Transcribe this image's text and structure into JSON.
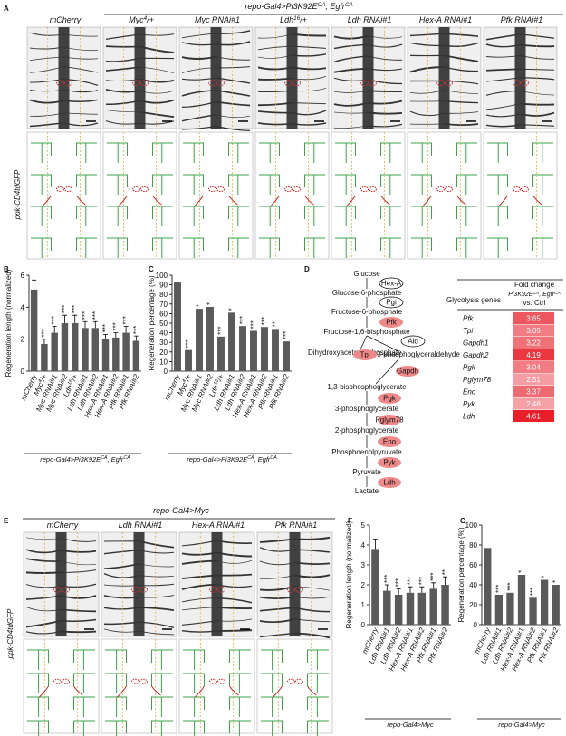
{
  "panel_labels": [
    "A",
    "B",
    "C",
    "D",
    "E",
    "F",
    "G"
  ],
  "panel_a": {
    "genotype": [
      "repo-Gal4>Pi3K92E",
      "CA",
      ", Egfr",
      "CA"
    ],
    "row_label": "ppk-CD4tdGFP",
    "columns": [
      [
        "mCherry"
      ],
      [
        "Myc",
        "4",
        "/+"
      ],
      [
        "Myc RNAi#1"
      ],
      [
        "Ldh",
        "16",
        "/+"
      ],
      [
        "Ldh RNAi#1"
      ],
      [
        "Hex-A RNAi#1"
      ],
      [
        "Pfk RNAi#1"
      ]
    ]
  },
  "panel_e": {
    "genotype": [
      "repo-Gal4>Myc"
    ],
    "row_label": "ppk-CD4tdGFP",
    "columns": [
      [
        "mCherry"
      ],
      [
        "Ldh RNAi#1"
      ],
      [
        "Hex-A RNAi#1"
      ],
      [
        "Pfk RNAi#1"
      ]
    ]
  },
  "panel_d": {
    "pathway": [
      {
        "label": "Glucose",
        "kind": "metabolite"
      },
      {
        "label": "Hex-A",
        "kind": "enzyme"
      },
      {
        "label": "Glucose-6-phosphate",
        "kind": "metabolite"
      },
      {
        "label": "Pgi",
        "kind": "enzyme"
      },
      {
        "label": "Fructose-6-phosphate",
        "kind": "metabolite"
      },
      {
        "label": "Pfk",
        "kind": "upregulated"
      },
      {
        "label": "Fructose-1,6-bisphosphate",
        "kind": "metabolite"
      },
      {
        "label": "Ald",
        "kind": "enzyme"
      },
      {
        "label": "Dihydroxyacetone phosphate",
        "kind": "metabolite"
      },
      {
        "label": "Tpi",
        "kind": "upregulated"
      },
      {
        "label": "3-phosphoglyceraldehyde",
        "kind": "metabolite"
      },
      {
        "label": "Gapdh",
        "kind": "upregulated"
      },
      {
        "label": "1,3-bisphosphoglycerate",
        "kind": "metabolite"
      },
      {
        "label": "Pgk",
        "kind": "upregulated"
      },
      {
        "label": "3-phosphoglycerate",
        "kind": "metabolite"
      },
      {
        "label": "Pglym78",
        "kind": "upregulated"
      },
      {
        "label": "2-phosphoglycerate",
        "kind": "metabolite"
      },
      {
        "label": "Eno",
        "kind": "upregulated"
      },
      {
        "label": "Phosphoenolpyruvate",
        "kind": "metabolite"
      },
      {
        "label": "Pyk",
        "kind": "upregulated"
      },
      {
        "label": "Pyruvate",
        "kind": "metabolite"
      },
      {
        "label": "Ldh",
        "kind": "upregulated"
      },
      {
        "label": "Lactate",
        "kind": "metabolite"
      }
    ],
    "table": {
      "gene_header": "Glycolysis genes",
      "fold_header": "Fold change",
      "comparison": [
        "Pi3K92E",
        "CA",
        ", Egfr",
        "CA"
      ],
      "ctrl": "vs. Ctrl",
      "rows": [
        {
          "gene": "Pfk",
          "fold": 3.65
        },
        {
          "gene": "Tpi",
          "fold": 3.05
        },
        {
          "gene": "Gapdh1",
          "fold": 3.22
        },
        {
          "gene": "Gapdh2",
          "fold": 4.19
        },
        {
          "gene": "Pgk",
          "fold": 3.04
        },
        {
          "gene": "Pglym78",
          "fold": 2.51
        },
        {
          "gene": "Eno",
          "fold": 3.37
        },
        {
          "gene": "Pyk",
          "fold": 2.46
        },
        {
          "gene": "Ldh",
          "fold": 4.61
        }
      ]
    }
  },
  "chart_data": [
    {
      "type": "bar",
      "y_label": "Regeneration length (normalized)",
      "color": "#5a5a5a",
      "categories": [
        [
          "mCherry"
        ],
        [
          "Myc",
          "4",
          "/+"
        ],
        [
          "Myc RNAi#1"
        ],
        [
          "Myc RNAi#2"
        ],
        [
          "Ldh",
          "16",
          "/+"
        ],
        [
          "Ldh RNAi#1"
        ],
        [
          "Ldh RNAi#2"
        ],
        [
          "Hex-A RNAi#1"
        ],
        [
          "Hex-A RNAi#2"
        ],
        [
          "Pfk RNAi#1"
        ],
        [
          "Pfk RNAi#2"
        ]
      ],
      "values": [
        5.1,
        1.7,
        2.4,
        3.0,
        3.0,
        2.7,
        2.7,
        2.0,
        2.1,
        2.4,
        1.9
      ],
      "errors": [
        0.6,
        0.3,
        0.4,
        0.5,
        0.5,
        0.4,
        0.4,
        0.3,
        0.3,
        0.4,
        0.3
      ],
      "significance": [
        null,
        "***",
        "***",
        "***",
        "***",
        "***",
        "***",
        "***",
        "***",
        "***",
        "***"
      ],
      "ylim": [
        0,
        6
      ],
      "yticks": [
        0,
        2,
        4,
        6
      ],
      "x_label": [
        "repo-Gal4>Pi3K92E",
        "CA",
        ", Egfr",
        "CA"
      ]
    },
    {
      "type": "bar",
      "y_label": "Regeneration percentage (%)",
      "color": "#5a5a5a",
      "categories": [
        [
          "mCherry"
        ],
        [
          "Myc",
          "4",
          "/+"
        ],
        [
          "Myc RNAi#1"
        ],
        [
          "Myc RNAi#2"
        ],
        [
          "Ldh",
          "16",
          "/+"
        ],
        [
          "Ldh RNAi#1"
        ],
        [
          "Ldh RNAi#2"
        ],
        [
          "Hex-A RNAi#1"
        ],
        [
          "Hex-A RNAi#2"
        ],
        [
          "Pfk RNAi#1"
        ],
        [
          "Pfk RNAi#2"
        ]
      ],
      "values": [
        93,
        22,
        65,
        67,
        36,
        61,
        47,
        42,
        46,
        44,
        31
      ],
      "significance": [
        null,
        "***",
        "*",
        "*",
        "***",
        "*",
        "***",
        "***",
        "***",
        "**",
        "***"
      ],
      "ylim": [
        0,
        100
      ],
      "yticks": [
        0,
        10,
        20,
        30,
        40,
        50,
        60,
        70,
        80,
        90,
        100
      ],
      "x_label": [
        "repo-Gal4>Pi3K92E",
        "CA",
        ", Egfr",
        "CA"
      ]
    },
    {
      "type": "bar",
      "y_label": "Regeneration length (normalized)",
      "color": "#5a5a5a",
      "categories": [
        [
          "mCherry"
        ],
        [
          "Ldh RNAi#1"
        ],
        [
          "Ldh RNAi#2"
        ],
        [
          "Hex-A RNAi#1"
        ],
        [
          "Hex-A RNAi#2"
        ],
        [
          "Pfk RNAi#1"
        ],
        [
          "Pfk RNAi#2"
        ]
      ],
      "values": [
        3.8,
        1.7,
        1.5,
        1.6,
        1.6,
        1.8,
        2.0
      ],
      "errors": [
        0.5,
        0.3,
        0.3,
        0.3,
        0.3,
        0.3,
        0.4
      ],
      "significance": [
        null,
        "***",
        "***",
        "***",
        "***",
        "***",
        "**"
      ],
      "ylim": [
        0,
        5
      ],
      "yticks": [
        0,
        1,
        2,
        3,
        4,
        5
      ],
      "x_label": [
        "repo-Gal4>Myc"
      ]
    },
    {
      "type": "bar",
      "y_label": "Regeneration percentage (%)",
      "color": "#5a5a5a",
      "categories": [
        [
          "mCherry"
        ],
        [
          "Ldh RNAi#1"
        ],
        [
          "Ldh RNAi#2"
        ],
        [
          "Hex-A RNAi#1"
        ],
        [
          "Hex-A RNAi#2"
        ],
        [
          "Pfk RNAi#1"
        ],
        [
          "Pfk RNAi#2"
        ]
      ],
      "values": [
        77,
        30,
        32,
        50,
        27,
        45,
        40
      ],
      "significance": [
        null,
        "***",
        "***",
        "*",
        "***",
        "*",
        "*"
      ],
      "ylim": [
        0,
        100
      ],
      "yticks": [
        0,
        20,
        40,
        60,
        80,
        100
      ],
      "x_label": [
        "repo-Gal4>Myc"
      ]
    }
  ]
}
